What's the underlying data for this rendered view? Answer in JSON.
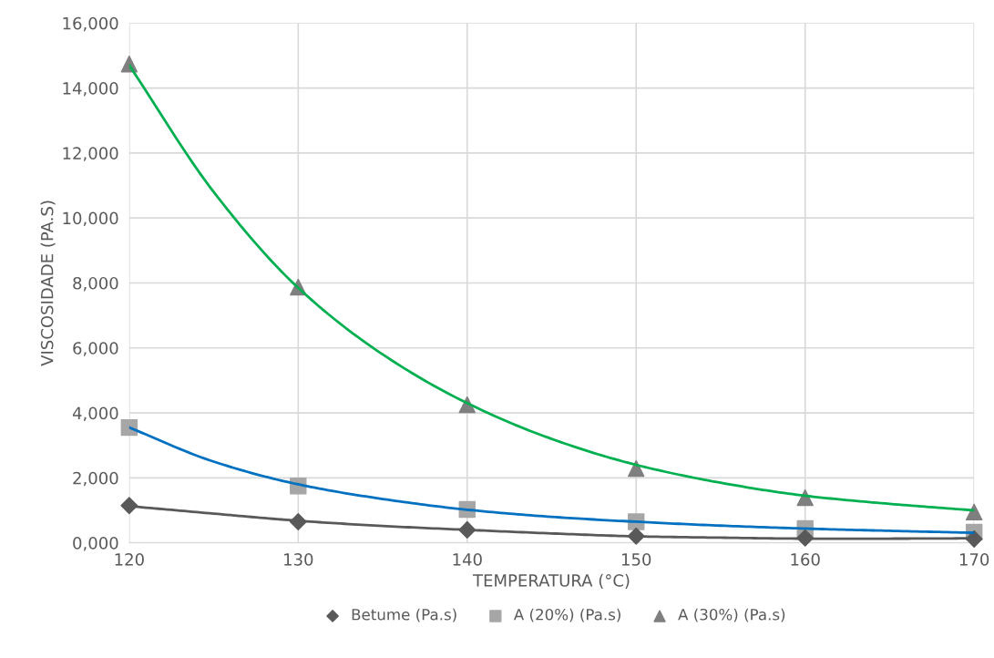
{
  "chart_data": {
    "type": "scatter",
    "xlabel": "TEMPERATURA (°C)",
    "ylabel": "VISCOSIDADE (PA.S)",
    "x": [
      120,
      130,
      140,
      150,
      160,
      170
    ],
    "series": [
      {
        "name": "Betume (Pa.s)",
        "color": "#595959",
        "marker": "diamond",
        "values": [
          1150,
          650,
          400,
          210,
          150,
          120
        ]
      },
      {
        "name": "A (20%) (Pa.s)",
        "color": "#a6a6a6",
        "marker": "square",
        "values": [
          3550,
          1750,
          1030,
          650,
          440,
          330
        ]
      },
      {
        "name": "A (30%) (Pa.s)",
        "color": "#7f7f7f",
        "marker": "triangle",
        "values": [
          14740,
          7870,
          4250,
          2290,
          1390,
          950
        ]
      },
      {
        "type": "line",
        "color": "#595959",
        "x": [
          120,
          125,
          130,
          135,
          140,
          145,
          150,
          155,
          160,
          165,
          170
        ],
        "values": [
          1130,
          900,
          680,
          520,
          400,
          290,
          200,
          160,
          130,
          130,
          140
        ]
      },
      {
        "type": "line",
        "color": "#0070c0",
        "x": [
          120,
          125,
          130,
          135,
          140,
          145,
          150,
          155,
          160,
          165,
          170
        ],
        "values": [
          3550,
          2500,
          1800,
          1350,
          1020,
          800,
          650,
          530,
          440,
          370,
          310
        ]
      },
      {
        "type": "line",
        "color": "#00b050",
        "x": [
          120,
          125,
          130,
          135,
          140,
          145,
          150,
          155,
          160,
          165,
          170
        ],
        "values": [
          14700,
          10800,
          7850,
          5800,
          4300,
          3200,
          2400,
          1850,
          1450,
          1200,
          1000
        ]
      }
    ],
    "xlim": [
      120,
      170
    ],
    "xticks": [
      120,
      130,
      140,
      150,
      160,
      170
    ],
    "ylim": [
      0,
      16000
    ],
    "yticks": [
      {
        "value": 0,
        "label": "0,000"
      },
      {
        "value": 2000,
        "label": "2,000"
      },
      {
        "value": 4000,
        "label": "4,000"
      },
      {
        "value": 6000,
        "label": "6,000"
      },
      {
        "value": 8000,
        "label": "8,000"
      },
      {
        "value": 10000,
        "label": "10,000"
      },
      {
        "value": 12000,
        "label": "12,000"
      },
      {
        "value": 14000,
        "label": "14,000"
      },
      {
        "value": 16000,
        "label": "16,000"
      }
    ],
    "grid": true,
    "legend": "bottom"
  }
}
